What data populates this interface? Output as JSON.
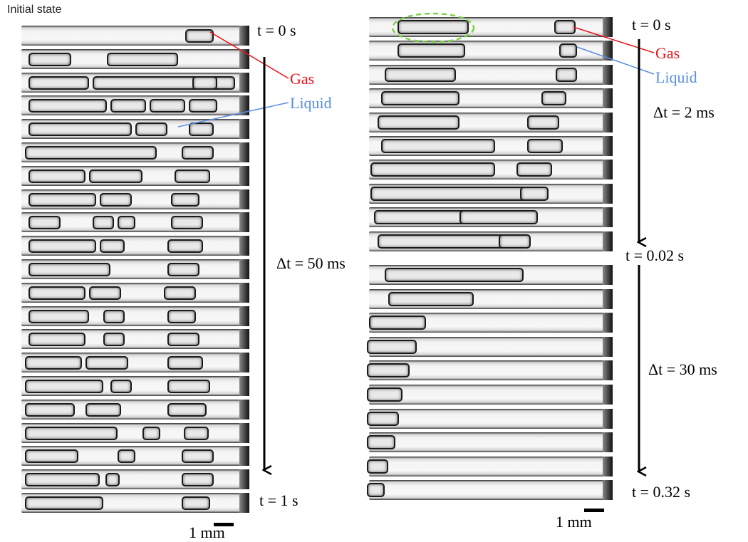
{
  "left_panel": {
    "caption": "Initial state",
    "t_start": "t = 0 s",
    "t_end": "t = 1 s",
    "delta_t": "Δt = 50 ms",
    "gas_label": "Gas",
    "liquid_label": "Liquid",
    "scale_bar": "1 mm"
  },
  "right_panel": {
    "t_start": "t = 0 s",
    "t_mid": "t = 0.02 s",
    "t_end": "t = 0.32 s",
    "delta_t_top": "Δt = 2 ms",
    "delta_t_bottom": "Δt = 30 ms",
    "gas_label": "Gas",
    "liquid_label": "Liquid",
    "scale_bar": "1 mm"
  },
  "colors": {
    "gas": "#e8131a",
    "liquid": "#5a8fe0",
    "highlight_ellipse": "#7bd14a",
    "arrow": "#000000"
  }
}
